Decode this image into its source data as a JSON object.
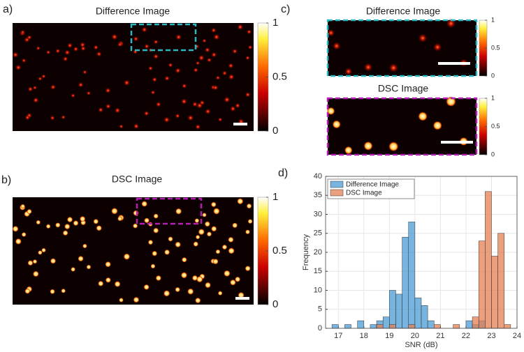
{
  "panels": {
    "a": {
      "label": "a)",
      "title": "Difference Image",
      "clim": [
        0,
        1
      ],
      "colorbar_ticks": [
        0,
        0.5,
        1
      ]
    },
    "b": {
      "label": "b)",
      "title": "DSC Image",
      "clim": [
        0,
        1
      ],
      "colorbar_ticks": [
        0,
        0.5,
        1
      ]
    },
    "c": {
      "label": "c)",
      "top": {
        "title": "Difference Image",
        "clim": [
          0,
          1
        ],
        "colorbar_ticks": [
          0,
          0.5,
          1
        ]
      },
      "bottom": {
        "title": "DSC Image",
        "clim": [
          0,
          1
        ],
        "colorbar_ticks": [
          0,
          0.5,
          1
        ]
      }
    },
    "d": {
      "label": "d)"
    }
  },
  "chart_data": {
    "type": "histogram",
    "xlabel": "SNR (dB)",
    "ylabel": "Frequency",
    "bins": [
      16.75,
      17,
      17.25,
      17.5,
      17.75,
      18,
      18.25,
      18.5,
      18.75,
      19,
      19.25,
      19.5,
      19.75,
      20,
      20.25,
      20.5,
      20.75,
      21,
      21.25,
      21.5,
      21.75,
      22,
      22.25,
      22.5,
      22.75,
      23,
      23.25,
      23.5,
      23.75
    ],
    "series": [
      {
        "name": "Difference Image",
        "color": "#4a9bd4",
        "values": [
          1,
          0,
          1,
          0,
          2,
          0,
          1,
          2,
          3,
          10,
          9,
          24,
          28,
          8,
          6,
          2,
          0,
          0,
          0,
          0,
          0,
          2,
          1,
          2,
          0,
          0,
          0,
          0
        ]
      },
      {
        "name": "DSC Image",
        "color": "#e57f52",
        "values": [
          0,
          0,
          0,
          0,
          0,
          0,
          0,
          1,
          0,
          1,
          0,
          0,
          1,
          0,
          0,
          0,
          1,
          0,
          0,
          1,
          0,
          0,
          3,
          23,
          36,
          19,
          25,
          1
        ]
      }
    ],
    "xlim": [
      16.5,
      24
    ],
    "ylim": [
      0,
      40
    ],
    "xticks": [
      17,
      18,
      19,
      20,
      21,
      22,
      23,
      24
    ],
    "yticks": [
      0,
      5,
      10,
      15,
      20,
      25,
      30,
      35,
      40
    ],
    "grid": true,
    "legend": "top-left"
  }
}
